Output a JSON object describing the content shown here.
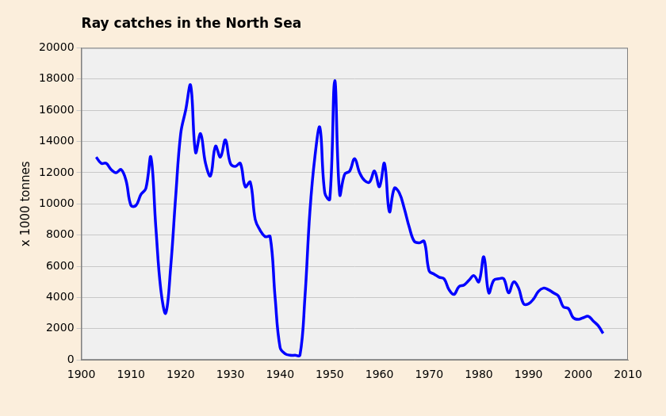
{
  "chart_data": {
    "type": "line",
    "title": "Ray catches in the North Sea",
    "y_label": "x 1000 tonnes",
    "color": "#0000ff",
    "grid": true,
    "xlim": [
      1900,
      2010
    ],
    "xticks": [
      1900,
      1910,
      1920,
      1930,
      1940,
      1950,
      1960,
      1970,
      1980,
      1990,
      2000,
      2010
    ],
    "ylim": [
      0,
      20000
    ],
    "yticks": [
      0,
      2000,
      4000,
      6000,
      8000,
      10000,
      12000,
      14000,
      16000,
      18000,
      20000
    ],
    "x": [
      1903,
      1904,
      1905,
      1906,
      1907,
      1908,
      1909,
      1910,
      1911,
      1912,
      1913,
      1914,
      1915,
      1916,
      1917,
      1918,
      1919,
      1920,
      1921,
      1922,
      1923,
      1924,
      1925,
      1926,
      1927,
      1928,
      1929,
      1930,
      1931,
      1932,
      1933,
      1934,
      1935,
      1936,
      1937,
      1938,
      1939,
      1940,
      1941,
      1942,
      1943,
      1944,
      1945,
      1946,
      1947,
      1948,
      1949,
      1950,
      1951,
      1952,
      1953,
      1954,
      1955,
      1956,
      1957,
      1958,
      1959,
      1960,
      1961,
      1962,
      1963,
      1964,
      1965,
      1966,
      1967,
      1968,
      1969,
      1970,
      1971,
      1972,
      1973,
      1974,
      1975,
      1976,
      1977,
      1978,
      1979,
      1980,
      1981,
      1982,
      1983,
      1984,
      1985,
      1986,
      1987,
      1988,
      1989,
      1990,
      1991,
      1992,
      1993,
      1994,
      1995,
      1996,
      1997,
      1998,
      1999,
      2000,
      2001,
      2002,
      2003,
      2004,
      2005
    ],
    "values": [
      13000,
      12600,
      12600,
      12200,
      12000,
      12200,
      11500,
      9900,
      9900,
      10600,
      11000,
      13000,
      8500,
      4500,
      3000,
      6000,
      10500,
      14500,
      16000,
      17600,
      13300,
      14500,
      12600,
      11800,
      13700,
      13000,
      14100,
      12600,
      12400,
      12600,
      11100,
      11400,
      9000,
      8300,
      7900,
      7900,
      4000,
      800,
      400,
      300,
      300,
      300,
      4000,
      9500,
      13000,
      14900,
      10700,
      10300,
      17900,
      10600,
      11900,
      12100,
      12900,
      12000,
      11500,
      11400,
      12100,
      11100,
      12600,
      9500,
      11000,
      10700,
      9700,
      8500,
      7600,
      7500,
      7600,
      5700,
      5500,
      5300,
      5200,
      4500,
      4200,
      4700,
      4800,
      5100,
      5400,
      5000,
      6600,
      4300,
      5100,
      5200,
      5200,
      4300,
      5000,
      4600,
      3600,
      3600,
      3900,
      4400,
      4600,
      4500,
      4300,
      4100,
      3400,
      3300,
      2700,
      2600,
      2700,
      2800,
      2500,
      2200,
      1700
    ]
  }
}
